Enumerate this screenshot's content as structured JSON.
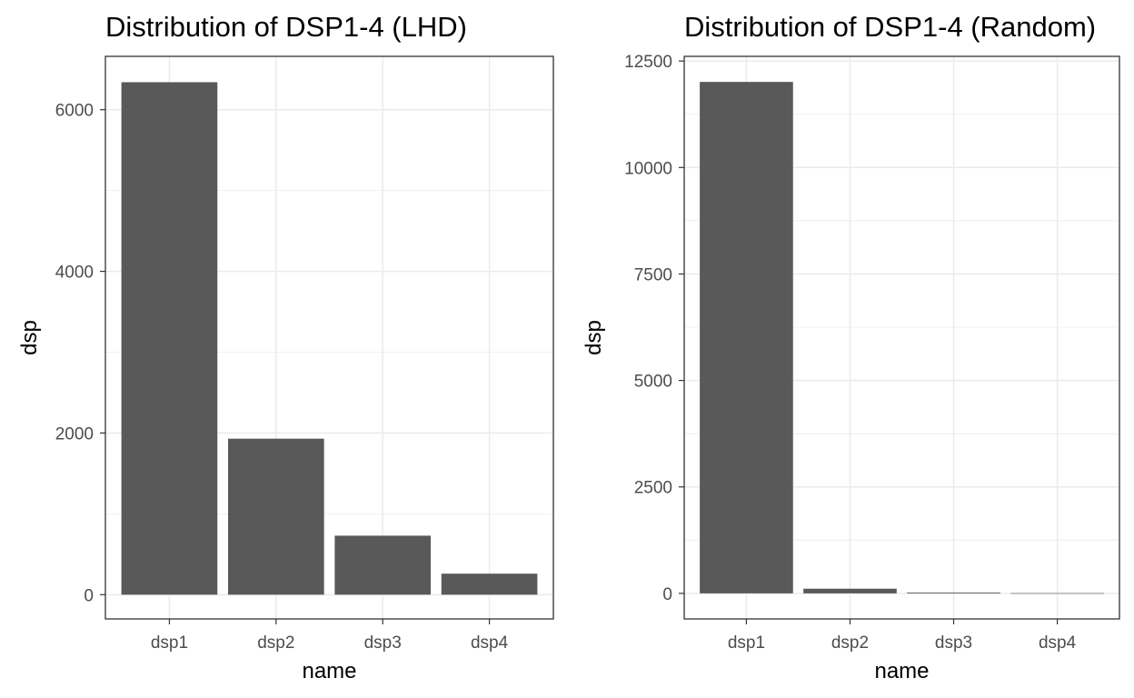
{
  "chart_data": [
    {
      "type": "bar",
      "title": "Distribution of DSP1-4 (LHD)",
      "xlabel": "name",
      "ylabel": "dsp",
      "categories": [
        "dsp1",
        "dsp2",
        "dsp3",
        "dsp4"
      ],
      "values": [
        6340,
        1930,
        730,
        260
      ],
      "ylim": [
        -300,
        6660
      ],
      "yticks": [
        0,
        2000,
        4000,
        6000
      ],
      "ytick_labels": [
        "0",
        "2000",
        "4000",
        "6000"
      ],
      "grid": true,
      "bar_color": "#595959"
    },
    {
      "type": "bar",
      "title": "Distribution of DSP1-4 (Random)",
      "xlabel": "name",
      "ylabel": "dsp",
      "categories": [
        "dsp1",
        "dsp2",
        "dsp3",
        "dsp4"
      ],
      "values": [
        12010,
        110,
        20,
        5
      ],
      "ylim": [
        -600,
        12610
      ],
      "yticks": [
        0,
        2500,
        5000,
        7500,
        10000,
        12500
      ],
      "ytick_labels": [
        "0",
        "2500",
        "5000",
        "7500",
        "10000",
        "12500"
      ],
      "grid": true,
      "bar_color": "#595959"
    }
  ]
}
